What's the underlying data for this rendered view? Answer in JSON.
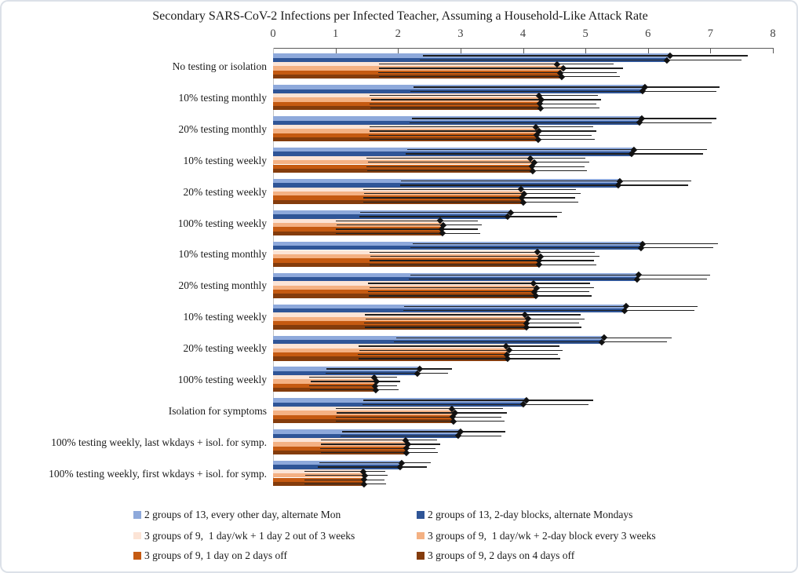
{
  "chart_data": {
    "type": "bar",
    "orientation": "horizontal",
    "title": "Secondary SARS-CoV-2 Infections per Infected Teacher, Assuming a Household-Like Attack Rate",
    "xlabel": "",
    "ylabel": "",
    "xlim": [
      0,
      8
    ],
    "xticks": [
      "0",
      "1",
      "2",
      "3",
      "4",
      "5",
      "6",
      "7",
      "8"
    ],
    "grid": false,
    "legend_position": "bottom",
    "error_bars": "horizontal line from ci_low to ci_high with black diamond at point estimate",
    "categories": [
      "No testing or isolation",
      "10% testing monthly",
      "20% testing monthly",
      "10% testing weekly",
      "20% testing weekly",
      "100% testing weekly",
      "10% testing monthly",
      "20% testing monthly",
      "10% testing weekly",
      "20% testing weekly",
      "100% testing weekly",
      "Isolation for symptoms",
      "100% testing weekly, last wkdays + isol. for symp.",
      "100% testing weekly, first wkdays + isol. for symp."
    ],
    "series": [
      {
        "name": "2 groups of 13, every other day, alternate Mon",
        "color": "#8EA9DB",
        "values": [
          6.35,
          5.95,
          5.9,
          5.78,
          5.55,
          3.8,
          5.92,
          5.85,
          5.65,
          5.3,
          2.35,
          4.05,
          3.0,
          2.06
        ],
        "ci_low": [
          2.4,
          2.25,
          2.22,
          2.15,
          2.05,
          1.4,
          2.23,
          2.2,
          2.1,
          1.97,
          0.86,
          1.45,
          1.1,
          0.74
        ],
        "ci_high": [
          7.6,
          7.15,
          7.1,
          6.95,
          6.7,
          4.62,
          7.12,
          7.0,
          6.8,
          6.38,
          2.86,
          5.12,
          3.72,
          2.52
        ]
      },
      {
        "name": "2 groups of 13, 2-day blocks, alternate Mondays",
        "color": "#2F5597",
        "values": [
          6.3,
          5.92,
          5.87,
          5.74,
          5.52,
          3.76,
          5.89,
          5.82,
          5.62,
          5.26,
          2.31,
          4.01,
          2.96,
          2.03
        ],
        "ci_low": [
          2.35,
          2.2,
          2.18,
          2.12,
          2.03,
          1.38,
          2.2,
          2.17,
          2.08,
          1.94,
          0.84,
          1.43,
          1.08,
          0.72
        ],
        "ci_high": [
          7.5,
          7.1,
          7.02,
          6.88,
          6.65,
          4.55,
          7.05,
          6.95,
          6.74,
          6.3,
          2.8,
          5.05,
          3.66,
          2.46
        ]
      },
      {
        "name": "3 groups of 9,  1 day/wk + 1 day 2 out of 3 weeks",
        "color": "#FCE4D6",
        "values": [
          4.55,
          4.25,
          4.2,
          4.12,
          3.97,
          2.68,
          4.23,
          4.17,
          4.03,
          3.73,
          1.62,
          2.86,
          2.12,
          1.44
        ],
        "ci_low": [
          1.7,
          1.55,
          1.54,
          1.5,
          1.45,
          1.0,
          1.55,
          1.52,
          1.47,
          1.37,
          0.58,
          1.0,
          0.76,
          0.5
        ],
        "ci_high": [
          5.45,
          5.2,
          5.12,
          5.0,
          4.85,
          3.28,
          5.15,
          5.08,
          4.92,
          4.58,
          1.98,
          3.68,
          2.62,
          1.8
        ]
      },
      {
        "name": "3 groups of 9,  1 day/wk + 2-day block every 3 weeks",
        "color": "#F4B183",
        "values": [
          4.65,
          4.3,
          4.26,
          4.18,
          4.02,
          2.73,
          4.28,
          4.22,
          4.08,
          3.78,
          1.66,
          2.91,
          2.16,
          1.47
        ],
        "ci_low": [
          1.7,
          1.57,
          1.55,
          1.52,
          1.46,
          1.02,
          1.56,
          1.54,
          1.48,
          1.38,
          0.6,
          1.02,
          0.77,
          0.51
        ],
        "ci_high": [
          5.6,
          5.25,
          5.18,
          5.06,
          4.92,
          3.34,
          5.22,
          5.14,
          4.98,
          4.64,
          2.04,
          3.74,
          2.68,
          1.84
        ]
      },
      {
        "name": "3 groups of 9, 1 day on 2 days off",
        "color": "#C55A11",
        "values": [
          4.6,
          4.27,
          4.22,
          4.14,
          3.98,
          2.7,
          4.25,
          4.18,
          4.05,
          3.74,
          1.63,
          2.88,
          2.13,
          1.45
        ],
        "ci_low": [
          1.68,
          1.55,
          1.53,
          1.5,
          1.44,
          1.0,
          1.54,
          1.52,
          1.46,
          1.36,
          0.58,
          1.0,
          0.75,
          0.5
        ],
        "ci_high": [
          5.5,
          5.18,
          5.1,
          4.98,
          4.84,
          3.28,
          5.14,
          5.06,
          4.9,
          4.56,
          1.98,
          3.66,
          2.6,
          1.78
        ]
      },
      {
        "name": "3 groups of 9, 2 days on 4 days off",
        "color": "#843C0C",
        "values": [
          4.62,
          4.28,
          4.24,
          4.16,
          4.0,
          2.71,
          4.26,
          4.2,
          4.06,
          3.76,
          1.64,
          2.89,
          2.14,
          1.46
        ],
        "ci_low": [
          1.7,
          1.56,
          1.54,
          1.51,
          1.45,
          1.01,
          1.55,
          1.53,
          1.47,
          1.37,
          0.59,
          1.01,
          0.76,
          0.5
        ],
        "ci_high": [
          5.55,
          5.22,
          5.15,
          5.02,
          4.88,
          3.31,
          5.18,
          5.1,
          4.94,
          4.6,
          2.01,
          3.7,
          2.64,
          1.81
        ]
      }
    ]
  },
  "colors": {
    "axis_line": "#595959",
    "error_bar": "#1f1f1f",
    "marker": "#111111",
    "frame_border": "#dce1e8"
  }
}
